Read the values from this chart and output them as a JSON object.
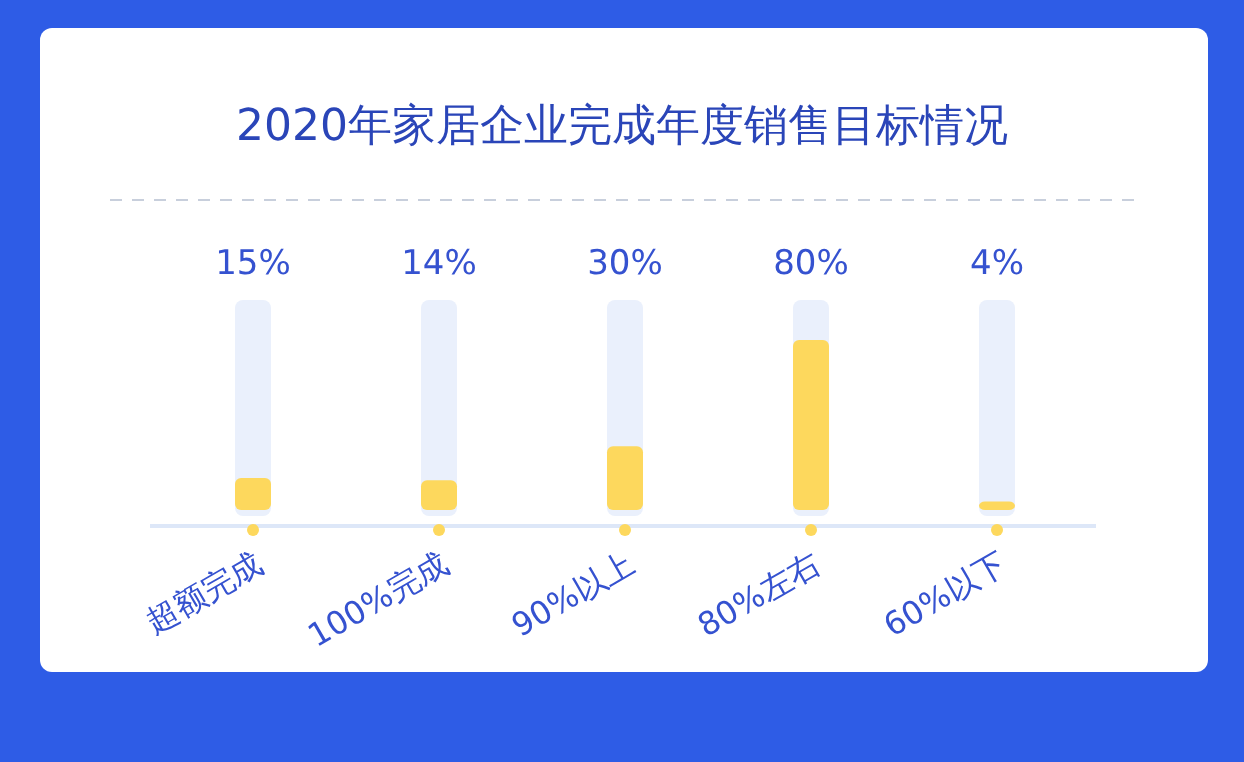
{
  "chart_data": {
    "type": "bar",
    "title": "2020年家居企业完成年度销售目标情况",
    "categories": [
      "超额完成",
      "100%完成",
      "90%以上",
      "80%左右",
      "60%以下"
    ],
    "values": [
      15,
      14,
      30,
      80,
      4
    ],
    "color": "#fdd85d",
    "value_labels": [
      "15%",
      "14%",
      "30%",
      "80%",
      "4%"
    ]
  }
}
